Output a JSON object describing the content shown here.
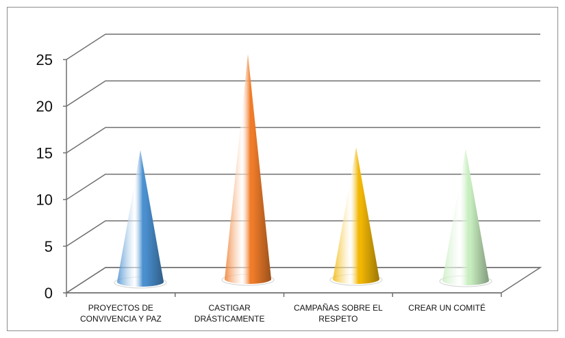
{
  "chart_data": {
    "type": "bar",
    "style": "3d-cone",
    "title": "",
    "xlabel": "",
    "ylabel": "",
    "categories": [
      [
        "PROYECTOS DE",
        "CONVIVENCIA Y PAZ"
      ],
      [
        "CASTIGAR",
        "DRÁSTICAMENTE"
      ],
      [
        "CAMPAÑAS SOBRE EL",
        "RESPETO"
      ],
      [
        "CREAR UN COMITÉ"
      ]
    ],
    "values": [
      15,
      25,
      15,
      15
    ],
    "colors": [
      "#4a90d0",
      "#f07c2a",
      "#f2b705",
      "#c8eec0"
    ],
    "ylim": [
      0,
      25
    ],
    "yticks": [
      "0",
      "5",
      "10",
      "15",
      "20",
      "25"
    ],
    "grid": true,
    "legend": "none"
  }
}
